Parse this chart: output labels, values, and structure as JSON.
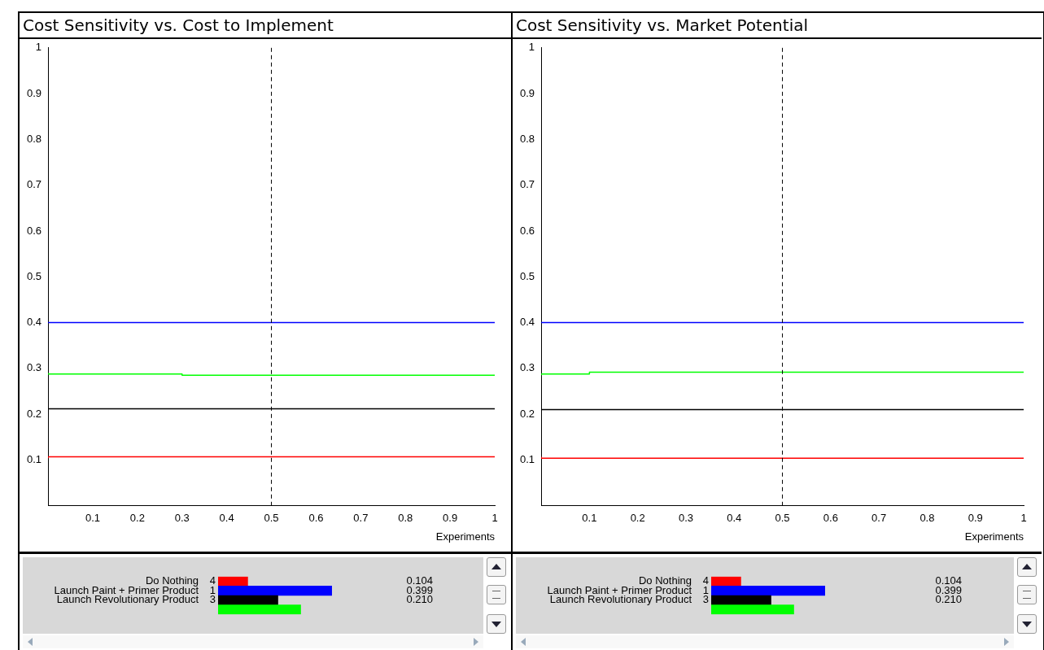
{
  "chart_data": [
    {
      "type": "step",
      "title": "Cost Sensitivity vs. Cost to Implement",
      "xlabel": "Experiments",
      "xlim": [
        0,
        1
      ],
      "ylim": [
        0,
        1
      ],
      "xticks": [
        0.1,
        0.2,
        0.3,
        0.4,
        0.5,
        0.6,
        0.7,
        0.8,
        0.9,
        1
      ],
      "yticks": [
        0.1,
        0.2,
        0.3,
        0.4,
        0.5,
        0.6,
        0.7,
        0.8,
        0.9,
        1
      ],
      "legend": false,
      "grid": false,
      "series": [
        {
          "color": "#ff0000",
          "x": [
            0,
            0.9,
            1
          ],
          "values": [
            0.104,
            0.107,
            0.107
          ]
        },
        {
          "color": "#0000ff",
          "x": [
            0,
            1
          ],
          "values": [
            0.4,
            0.4
          ]
        },
        {
          "color": "#000000",
          "x": [
            0,
            0.7,
            1
          ],
          "values": [
            0.21,
            0.212,
            0.212
          ]
        },
        {
          "color": "#00ff00",
          "x": [
            0,
            0.3,
            0.9,
            1
          ],
          "values": [
            0.29,
            0.288,
            0.285,
            0.285
          ]
        }
      ],
      "ref_lines": [
        {
          "axis": "x",
          "value": 0.5,
          "color": "#000000",
          "line_style": "dashed"
        }
      ]
    },
    {
      "type": "bar",
      "orientation": "horizontal",
      "categories": [
        "Do Nothing",
        "Launch Paint + Primer Product",
        "Launch Revolutionary Product",
        null
      ],
      "values": [
        0.104,
        0.399,
        0.21,
        0.29
      ],
      "colors": [
        "#ff0000",
        "#0000ff",
        "#000000",
        "#00ff00"
      ],
      "value_labels": [
        "0.104",
        "0.399",
        "0.210",
        null
      ],
      "tick_labels": "y",
      "legend": false,
      "grid": false,
      "annotations": [
        "4",
        "1",
        "3"
      ]
    },
    {
      "type": "step",
      "title": "Cost Sensitivity vs. Market Potential",
      "xlabel": "Experiments",
      "xlim": [
        0,
        1
      ],
      "ylim": [
        0,
        1
      ],
      "xticks": [
        0.1,
        0.2,
        0.3,
        0.4,
        0.5,
        0.6,
        0.7,
        0.8,
        0.9,
        1
      ],
      "yticks": [
        0.1,
        0.2,
        0.3,
        0.4,
        0.5,
        0.6,
        0.7,
        0.8,
        0.9,
        1
      ],
      "legend": false,
      "grid": false,
      "series": [
        {
          "color": "#ff0000",
          "x": [
            0,
            0.1,
            1
          ],
          "values": [
            0.107,
            0.104,
            0.104
          ]
        },
        {
          "color": "#0000ff",
          "x": [
            0,
            1
          ],
          "values": [
            0.4,
            0.4
          ]
        },
        {
          "color": "#000000",
          "x": [
            0,
            0.3,
            1
          ],
          "values": [
            0.212,
            0.21,
            0.21
          ]
        },
        {
          "color": "#00ff00",
          "x": [
            0,
            0.1,
            0.7,
            1
          ],
          "values": [
            0.285,
            0.288,
            0.292,
            0.292
          ]
        }
      ],
      "ref_lines": [
        {
          "axis": "x",
          "value": 0.5,
          "color": "#000000",
          "line_style": "dashed"
        }
      ]
    },
    {
      "type": "bar",
      "orientation": "horizontal",
      "categories": [
        "Do Nothing",
        "Launch Paint + Primer Product",
        "Launch Revolutionary Product",
        null
      ],
      "values": [
        0.104,
        0.399,
        0.21,
        0.29
      ],
      "colors": [
        "#ff0000",
        "#0000ff",
        "#000000",
        "#00ff00"
      ],
      "value_labels": [
        "0.104",
        "0.399",
        "0.210",
        null
      ],
      "tick_labels": "y",
      "legend": false,
      "grid": false,
      "annotations": [
        "4",
        "1",
        "3"
      ]
    }
  ]
}
